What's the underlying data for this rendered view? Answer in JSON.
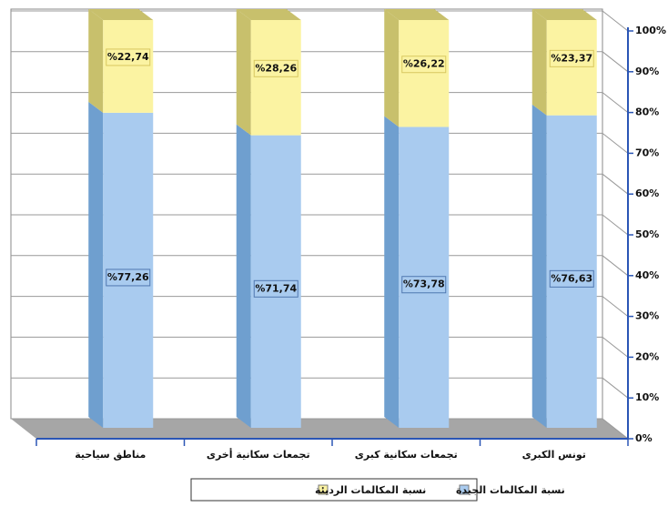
{
  "chart_data": {
    "type": "stacked_bar_3d",
    "categories": [
      "مناطق سياحية",
      "تجمعات سكانية أخرى",
      "تجمعات سكانية كبرى",
      "تونس الكبرى"
    ],
    "series": [
      {
        "name": "نسبة المكالمات الجيدة",
        "color": "#a9cbef",
        "side_color": "#6f9fcf",
        "values": [
          77.26,
          71.74,
          73.78,
          76.63
        ],
        "value_labels": [
          "%77,26",
          "%71,74",
          "%73,78",
          "%76,63"
        ]
      },
      {
        "name": "نسبة المكالمات الرديئة",
        "color": "#fbf3a2",
        "side_color": "#c8c06c",
        "values": [
          22.74,
          28.26,
          26.22,
          23.37
        ],
        "value_labels": [
          "%22,74",
          "%28,26",
          "%26,22",
          "%23,37"
        ]
      }
    ],
    "ylim": [
      0,
      100
    ],
    "yticks": [
      {
        "value": 0,
        "label": "0%"
      },
      {
        "value": 10,
        "label": "10%"
      },
      {
        "value": 20,
        "label": "20%"
      },
      {
        "value": 30,
        "label": "30%"
      },
      {
        "value": 40,
        "label": "40%"
      },
      {
        "value": 50,
        "label": "50%"
      },
      {
        "value": 60,
        "label": "60%"
      },
      {
        "value": 70,
        "label": "70%"
      },
      {
        "value": 80,
        "label": "80%"
      },
      {
        "value": 90,
        "label": "90%"
      },
      {
        "value": 100,
        "label": "100%"
      }
    ],
    "grid": true,
    "legend": "bottom",
    "axis_side": "right"
  }
}
